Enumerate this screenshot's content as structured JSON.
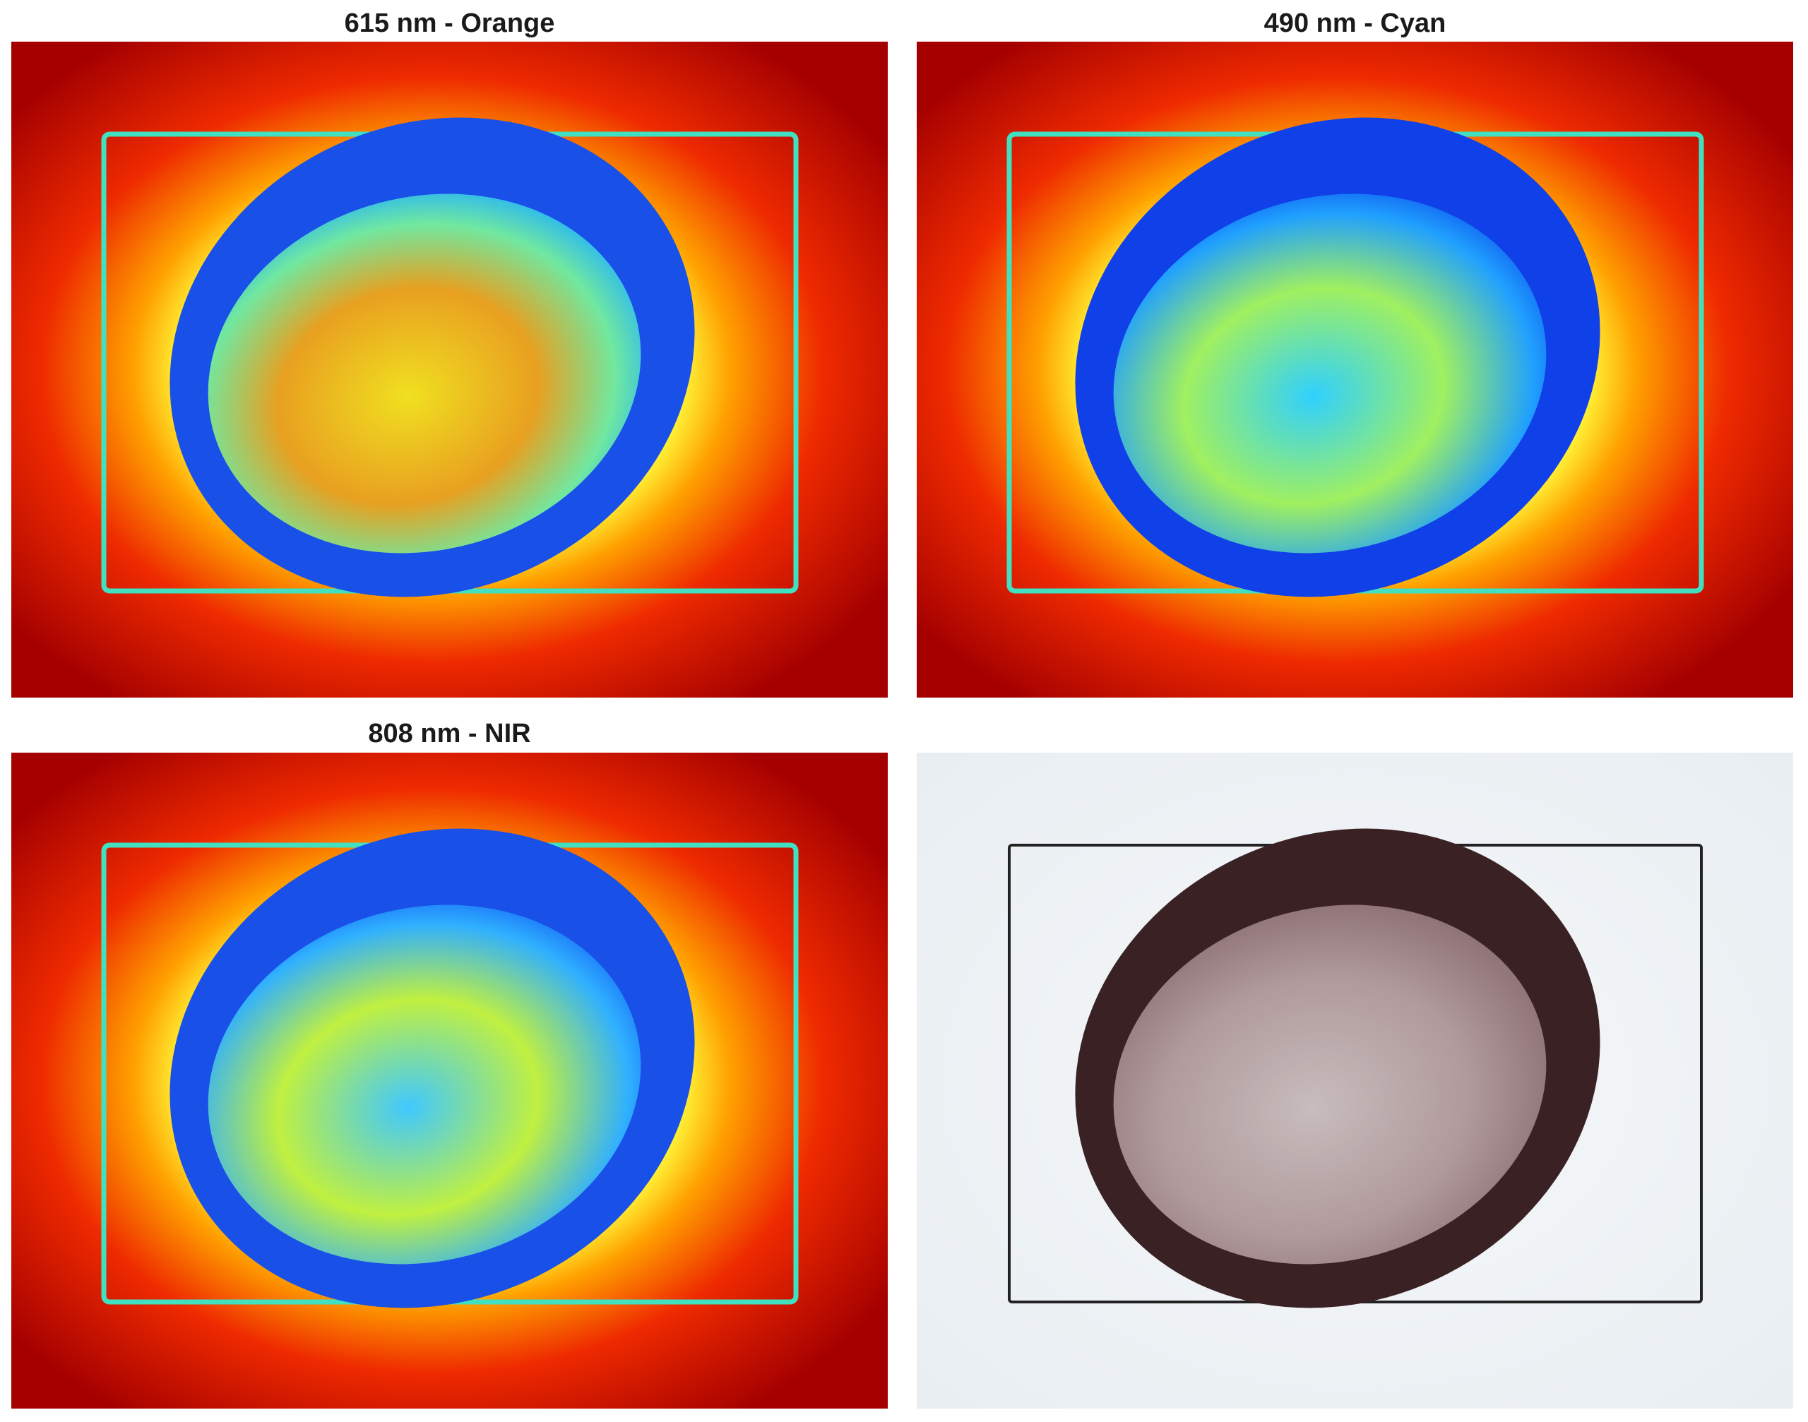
{
  "panels": [
    {
      "title": "615 nm - Orange"
    },
    {
      "title": "490 nm - Cyan"
    },
    {
      "title": "808 nm - NIR"
    }
  ]
}
